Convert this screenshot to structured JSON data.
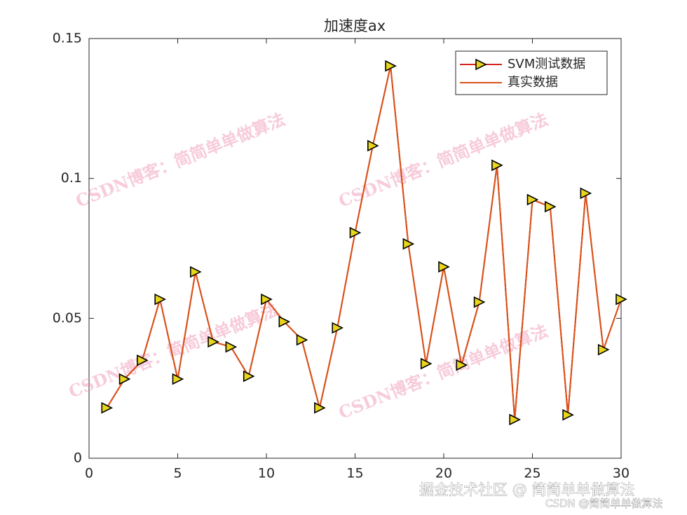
{
  "chart_data": {
    "type": "line",
    "title": "加速度ax",
    "x": [
      1,
      2,
      3,
      4,
      5,
      6,
      7,
      8,
      9,
      10,
      11,
      12,
      13,
      14,
      15,
      16,
      17,
      18,
      19,
      20,
      21,
      22,
      23,
      24,
      25,
      26,
      27,
      28,
      29,
      30
    ],
    "series": [
      {
        "name": "SVM测试数据",
        "color": "#d7261e",
        "marker": "triangle-right",
        "marker_face": "#e8d51c",
        "values": [
          0.018,
          0.0283,
          0.035,
          0.0568,
          0.0283,
          0.0666,
          0.0416,
          0.0398,
          0.0293,
          0.0568,
          0.0488,
          0.0423,
          0.018,
          0.0466,
          0.0806,
          0.1117,
          0.1402,
          0.0766,
          0.0338,
          0.0684,
          0.0333,
          0.0558,
          0.1047,
          0.0138,
          0.0924,
          0.0899,
          0.0155,
          0.0947,
          0.0388,
          0.0568
        ]
      },
      {
        "name": "真实数据",
        "color": "#d95319",
        "values": [
          0.018,
          0.0283,
          0.035,
          0.0568,
          0.0283,
          0.0666,
          0.0416,
          0.0398,
          0.0293,
          0.0568,
          0.0488,
          0.0423,
          0.018,
          0.0466,
          0.0806,
          0.1117,
          0.1402,
          0.0766,
          0.0338,
          0.0684,
          0.0333,
          0.0558,
          0.1047,
          0.0138,
          0.0924,
          0.0899,
          0.0155,
          0.0947,
          0.0388,
          0.0568
        ]
      }
    ],
    "xlim": [
      0,
      30
    ],
    "ylim": [
      0,
      0.15
    ],
    "xticks": [
      0,
      5,
      10,
      15,
      20,
      25,
      30
    ],
    "yticks": [
      0,
      0.05,
      0.1,
      0.15
    ],
    "legend": "top-right"
  },
  "watermark": "CSDN博客：简简单单做算法",
  "footer": [
    "掘金技术社区 @ 简简单单做算法",
    "CSDN @简简单单做算法"
  ]
}
